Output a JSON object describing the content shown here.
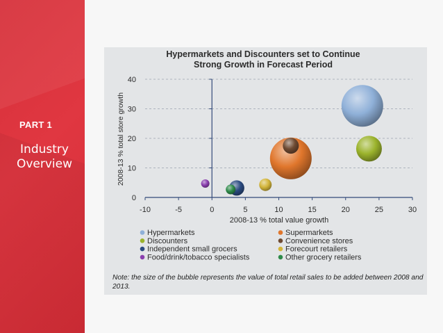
{
  "sidebar": {
    "part_label": "PART 1",
    "section_line1": "Industry",
    "section_line2": "Overview"
  },
  "note": "Note: the size of the bubble represents the value of total retail sales to be added between 2008 and 2013.",
  "colors": {
    "sidebar_red": "#dc343e",
    "card_bg": "#e3e5e7",
    "axis": "#334a7a"
  },
  "chart_data": {
    "type": "scatter",
    "bubble": true,
    "title_lines": [
      "Hypermarkets and Discounters set to Continue",
      "Strong Growth in Forecast Period"
    ],
    "xlabel": "2008-13 % total value growth",
    "ylabel": "2008-13 % total store growth",
    "xlim": [
      -10,
      30
    ],
    "ylim": [
      0,
      40
    ],
    "xticks": [
      -10,
      -5,
      0,
      5,
      10,
      15,
      20,
      25,
      30
    ],
    "yticks": [
      0,
      10,
      20,
      30,
      40
    ],
    "grid": "horizontal dashed",
    "series": [
      {
        "name": "Hypermarkets",
        "x": 22.5,
        "y": 31,
        "size": 30,
        "color": "#8fb0d8"
      },
      {
        "name": "Supermarkets",
        "x": 11.8,
        "y": 13.2,
        "size": 30,
        "color": "#e0762c"
      },
      {
        "name": "Discounters",
        "x": 23.5,
        "y": 16.5,
        "size": 18.5,
        "color": "#9bb32c"
      },
      {
        "name": "Convenience stores",
        "x": 11.8,
        "y": 17.5,
        "size": 11.5,
        "color": "#6e4a32"
      },
      {
        "name": "Independent small grocers",
        "x": 3.7,
        "y": 3.2,
        "size": 11,
        "color": "#2a4a80"
      },
      {
        "name": "Forecourt retailers",
        "x": 8,
        "y": 4.3,
        "size": 9,
        "color": "#d3b53a"
      },
      {
        "name": "Food/drink/tobacco specialists",
        "x": -1,
        "y": 4.7,
        "size": 6,
        "color": "#8a3fae"
      },
      {
        "name": "Other grocery retailers",
        "x": 2.8,
        "y": 2.7,
        "size": 7,
        "color": "#2e8a4a"
      }
    ],
    "legend_placement": "bottom, two columns",
    "legend_order": [
      "Hypermarkets",
      "Supermarkets",
      "Discounters",
      "Convenience stores",
      "Independent small grocers",
      "Forecourt retailers",
      "Food/drink/tobacco specialists",
      "Other grocery retailers"
    ]
  }
}
